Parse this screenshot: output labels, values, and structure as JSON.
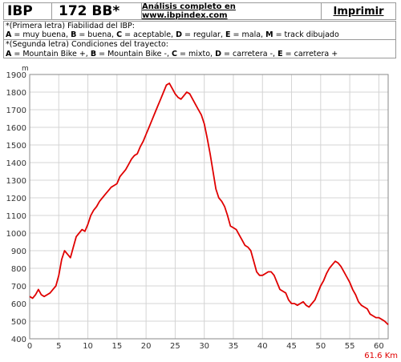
{
  "header": {
    "ibp_label": "IBP",
    "ibp_value": "172 BB*",
    "analysis_link": "Análisis completo en www.ibpindex.com",
    "print_label": "Imprimir"
  },
  "legend": {
    "line1": "*(Primera letra) Fiabilidad del IBP:",
    "line2": [
      {
        "key": "A",
        "text": " = muy buena, "
      },
      {
        "key": "B",
        "text": " = buena, "
      },
      {
        "key": "C",
        "text": " = aceptable, "
      },
      {
        "key": "D",
        "text": " = regular, "
      },
      {
        "key": "E",
        "text": " = mala, "
      },
      {
        "key": "M",
        "text": " = track dibujado"
      }
    ],
    "line3": "*(Segunda letra) Condiciones del trayecto:",
    "line4": [
      {
        "key": "A",
        "text": " = Mountain Bike +, "
      },
      {
        "key": "B",
        "text": " = Mountain Bike -, "
      },
      {
        "key": "C",
        "text": " = mixto, "
      },
      {
        "key": "D",
        "text": " = carretera -, "
      },
      {
        "key": "E",
        "text": " = carretera +"
      }
    ]
  },
  "chart_data": {
    "type": "line",
    "title": "",
    "xlabel": "",
    "ylabel": "",
    "y_unit_label": "m",
    "total_label": "61.6 Km",
    "xlim": [
      0,
      61.6
    ],
    "ylim": [
      400,
      1900
    ],
    "x_ticks": [
      0,
      5,
      10,
      15,
      20,
      25,
      30,
      35,
      40,
      45,
      50,
      55,
      60
    ],
    "y_ticks": [
      400,
      500,
      600,
      700,
      800,
      900,
      1000,
      1100,
      1200,
      1300,
      1400,
      1500,
      1600,
      1700,
      1800,
      1900
    ],
    "grid": true,
    "line_color": "#e00000",
    "series": [
      {
        "x": [
          0,
          0.5,
          1,
          1.5,
          2,
          2.5,
          3,
          3.5,
          4,
          4.5,
          5,
          5.5,
          6,
          6.5,
          7,
          7.5,
          8,
          8.5,
          9,
          9.5,
          10,
          10.5,
          11,
          11.5,
          12,
          12.5,
          13,
          13.5,
          14,
          14.5,
          15,
          15.5,
          16,
          16.5,
          17,
          17.5,
          18,
          18.5,
          19,
          19.5,
          20,
          20.5,
          21,
          21.5,
          22,
          22.5,
          23,
          23.5,
          24,
          24.5,
          25,
          25.5,
          26,
          26.5,
          27,
          27.5,
          28,
          28.5,
          29,
          29.5,
          30,
          30.5,
          31,
          31.5,
          32,
          32.5,
          33,
          33.5,
          34,
          34.5,
          35,
          35.5,
          36,
          36.5,
          37,
          37.5,
          38,
          38.5,
          39,
          39.5,
          40,
          40.5,
          41,
          41.5,
          42,
          42.5,
          43,
          43.5,
          44,
          44.5,
          45,
          45.5,
          46,
          46.5,
          47,
          47.5,
          48,
          48.5,
          49,
          49.5,
          50,
          50.5,
          51,
          51.5,
          52,
          52.5,
          53,
          53.5,
          54,
          54.5,
          55,
          55.5,
          56,
          56.5,
          57,
          57.5,
          58,
          58.5,
          59,
          59.5,
          60,
          60.5,
          61,
          61.6
        ],
        "values": [
          640,
          630,
          650,
          680,
          650,
          640,
          650,
          660,
          680,
          700,
          760,
          850,
          900,
          880,
          860,
          920,
          980,
          1000,
          1020,
          1010,
          1050,
          1100,
          1130,
          1150,
          1180,
          1200,
          1220,
          1240,
          1260,
          1270,
          1280,
          1320,
          1340,
          1360,
          1390,
          1420,
          1440,
          1450,
          1490,
          1520,
          1560,
          1600,
          1640,
          1680,
          1720,
          1760,
          1800,
          1840,
          1850,
          1820,
          1790,
          1770,
          1760,
          1780,
          1800,
          1790,
          1760,
          1730,
          1700,
          1670,
          1620,
          1540,
          1450,
          1350,
          1250,
          1200,
          1180,
          1150,
          1100,
          1040,
          1030,
          1020,
          990,
          960,
          930,
          920,
          900,
          840,
          780,
          760,
          760,
          770,
          780,
          780,
          760,
          720,
          680,
          670,
          660,
          620,
          600,
          600,
          590,
          600,
          610,
          590,
          580,
          600,
          620,
          660,
          700,
          730,
          770,
          800,
          820,
          840,
          830,
          810,
          780,
          750,
          720,
          680,
          650,
          610,
          590,
          580,
          570,
          540,
          530,
          520,
          520,
          510,
          500,
          480
        ]
      }
    ]
  }
}
